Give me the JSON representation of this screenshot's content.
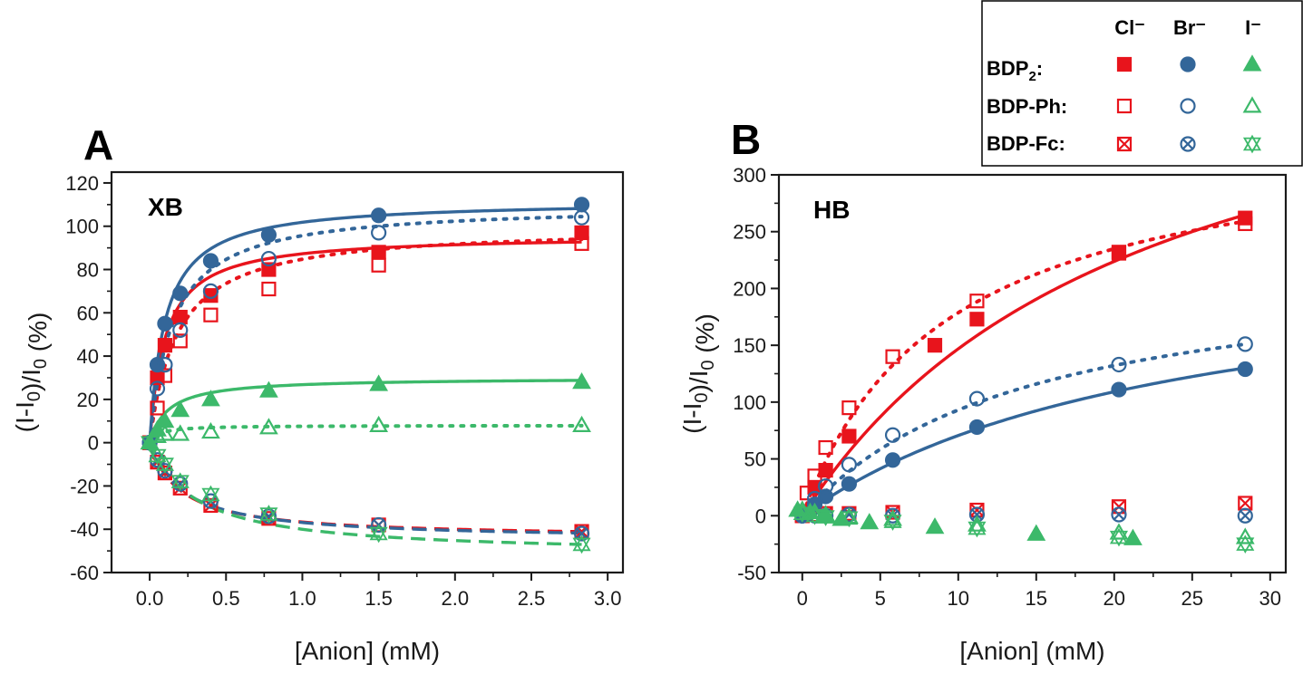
{
  "colors": {
    "cl": "#e8141c",
    "br": "#336699",
    "i": "#3cb96a",
    "axis": "#1a1a1a"
  },
  "legend": {
    "columns": [
      "Cl⁻",
      "Br⁻",
      "I⁻"
    ],
    "rows": [
      {
        "label": "BDP",
        "sub": "2",
        "suffix": ":",
        "style": "filled"
      },
      {
        "label": "BDP-Ph:",
        "sub": "",
        "suffix": "",
        "style": "open"
      },
      {
        "label": "BDP-Fc:",
        "sub": "",
        "suffix": "",
        "style": "crossed"
      }
    ]
  },
  "chart_data": [
    {
      "panel": "A",
      "inner_label": "XB",
      "type": "scatter",
      "xlabel": "[Anion] (mM)",
      "ylabel": "(I-I0)/I0 (%)",
      "xlim": [
        -0.25,
        3.1
      ],
      "ylim": [
        -60,
        125
      ],
      "xticks": [
        0.0,
        0.5,
        1.0,
        1.5,
        2.0,
        2.5,
        3.0
      ],
      "xtick_labels": [
        "0.0",
        "0.5",
        "1.0",
        "1.5",
        "2.0",
        "2.5",
        "3.0"
      ],
      "yticks": [
        -60,
        -40,
        -20,
        0,
        20,
        40,
        60,
        80,
        100,
        120
      ],
      "ytick_labels": [
        "-60",
        "-40",
        "-20",
        "0",
        "20",
        "40",
        "60",
        "80",
        "100",
        "120"
      ],
      "series": [
        {
          "anion": "Cl",
          "compound": "BDP2",
          "marker": "square-filled",
          "fit": "solid",
          "points": [
            [
              0,
              0
            ],
            [
              0.05,
              30
            ],
            [
              0.1,
              45
            ],
            [
              0.2,
              58
            ],
            [
              0.4,
              68
            ],
            [
              0.78,
              80
            ],
            [
              1.5,
              88
            ],
            [
              2.83,
              97
            ]
          ],
          "fit_curve": {
            "a": 96,
            "k": 0.1,
            "hill": 1
          }
        },
        {
          "anion": "Cl",
          "compound": "BDP-Ph",
          "marker": "square-open",
          "fit": "dotted",
          "points": [
            [
              0,
              0
            ],
            [
              0.05,
              16
            ],
            [
              0.1,
              31
            ],
            [
              0.2,
              47
            ],
            [
              0.4,
              59
            ],
            [
              0.78,
              71
            ],
            [
              1.5,
              82
            ],
            [
              2.83,
              92
            ]
          ],
          "fit_curve": {
            "a": 100,
            "k": 0.18,
            "hill": 1
          }
        },
        {
          "anion": "Cl",
          "compound": "BDP-Fc",
          "marker": "square-crossed",
          "fit": "dashed",
          "points": [
            [
              0,
              0
            ],
            [
              0.05,
              -9
            ],
            [
              0.1,
              -14
            ],
            [
              0.2,
              -21
            ],
            [
              0.4,
              -29
            ],
            [
              0.78,
              -35
            ],
            [
              1.5,
              -38
            ],
            [
              2.83,
              -41
            ]
          ],
          "fit_curve": {
            "a": -44,
            "k": 0.2,
            "hill": 1
          }
        },
        {
          "anion": "Br",
          "compound": "BDP2",
          "marker": "circle-filled",
          "fit": "solid",
          "points": [
            [
              0,
              0
            ],
            [
              0.05,
              36
            ],
            [
              0.1,
              55
            ],
            [
              0.2,
              69
            ],
            [
              0.4,
              84
            ],
            [
              0.78,
              96
            ],
            [
              1.5,
              105
            ],
            [
              2.83,
              110
            ]
          ],
          "fit_curve": {
            "a": 112,
            "k": 0.1,
            "hill": 1
          }
        },
        {
          "anion": "Br",
          "compound": "BDP-Ph",
          "marker": "circle-open",
          "fit": "dotted",
          "points": [
            [
              0,
              0
            ],
            [
              0.05,
              25
            ],
            [
              0.1,
              36
            ],
            [
              0.2,
              52
            ],
            [
              0.4,
              70
            ],
            [
              0.78,
              85
            ],
            [
              1.5,
              97
            ],
            [
              2.83,
              104
            ]
          ],
          "fit_curve": {
            "a": 110,
            "k": 0.15,
            "hill": 1
          }
        },
        {
          "anion": "Br",
          "compound": "BDP-Fc",
          "marker": "circle-crossed",
          "fit": "dashed",
          "points": [
            [
              0,
              0
            ],
            [
              0.05,
              -8
            ],
            [
              0.1,
              -13
            ],
            [
              0.2,
              -19
            ],
            [
              0.4,
              -27
            ],
            [
              0.78,
              -34
            ],
            [
              1.5,
              -38
            ],
            [
              2.83,
              -42
            ]
          ],
          "fit_curve": {
            "a": -45,
            "k": 0.22,
            "hill": 1
          }
        },
        {
          "anion": "I",
          "compound": "BDP2",
          "marker": "triangle-filled",
          "fit": "solid",
          "points": [
            [
              0,
              0
            ],
            [
              0.05,
              6
            ],
            [
              0.1,
              10
            ],
            [
              0.2,
              15
            ],
            [
              0.4,
              20
            ],
            [
              0.78,
              24
            ],
            [
              1.5,
              27
            ],
            [
              2.83,
              28
            ]
          ],
          "fit_curve": {
            "a": 30,
            "k": 0.12,
            "hill": 1
          }
        },
        {
          "anion": "I",
          "compound": "BDP-Ph",
          "marker": "triangle-open",
          "fit": "dotted",
          "points": [
            [
              0,
              0
            ],
            [
              0.05,
              3
            ],
            [
              0.1,
              4
            ],
            [
              0.2,
              4
            ],
            [
              0.4,
              5
            ],
            [
              0.78,
              7
            ],
            [
              1.5,
              8
            ],
            [
              2.83,
              8
            ]
          ],
          "fit_curve": {
            "a": 8,
            "k": 0.06,
            "hill": 1
          }
        },
        {
          "anion": "I",
          "compound": "BDP-Fc",
          "marker": "triangle-crossed",
          "fit": "dashed",
          "points": [
            [
              0,
              0
            ],
            [
              0.05,
              -6
            ],
            [
              0.1,
              -10
            ],
            [
              0.2,
              -18
            ],
            [
              0.4,
              -24
            ],
            [
              0.78,
              -33
            ],
            [
              1.5,
              -42
            ],
            [
              2.83,
              -47
            ]
          ],
          "fit_curve": {
            "a": -52,
            "k": 0.3,
            "hill": 1
          }
        }
      ]
    },
    {
      "panel": "B",
      "inner_label": "HB",
      "type": "scatter",
      "xlabel": "[Anion] (mM)",
      "ylabel": "(I-I0)/I0 (%)",
      "xlim": [
        -1.5,
        31
      ],
      "ylim": [
        -50,
        300
      ],
      "xticks": [
        0,
        5,
        10,
        15,
        20,
        25,
        30
      ],
      "xtick_labels": [
        "0",
        "5",
        "10",
        "15",
        "20",
        "25",
        "30"
      ],
      "yticks": [
        -50,
        0,
        50,
        100,
        150,
        200,
        250,
        300
      ],
      "ytick_labels": [
        "-50",
        "0",
        "50",
        "100",
        "150",
        "200",
        "250",
        "300"
      ],
      "series": [
        {
          "anion": "Cl",
          "compound": "BDP2",
          "marker": "square-filled",
          "fit": "solid",
          "points": [
            [
              0,
              0
            ],
            [
              0.8,
              25
            ],
            [
              1.5,
              40
            ],
            [
              3,
              70
            ],
            [
              8.5,
              150
            ],
            [
              11.2,
              173
            ],
            [
              20.3,
              232
            ],
            [
              28.4,
              262
            ]
          ],
          "fit_curve": {
            "a": 470,
            "k": 22,
            "hill": 1
          }
        },
        {
          "anion": "Cl",
          "compound": "BDP-Ph",
          "marker": "square-open",
          "fit": "dotted",
          "points": [
            [
              0,
              0
            ],
            [
              0.3,
              20
            ],
            [
              0.8,
              35
            ],
            [
              1.5,
              60
            ],
            [
              3,
              95
            ],
            [
              5.8,
              140
            ],
            [
              11.2,
              189
            ],
            [
              20.3,
              231
            ],
            [
              28.4,
              257
            ]
          ],
          "fit_curve": {
            "a": 343,
            "k": 9.2,
            "hill": 1
          }
        },
        {
          "anion": "Cl",
          "compound": "BDP-Fc",
          "marker": "square-crossed",
          "fit": "none",
          "points": [
            [
              0,
              0
            ],
            [
              0.8,
              1
            ],
            [
              1.5,
              2
            ],
            [
              3,
              2
            ],
            [
              5.8,
              3
            ],
            [
              11.2,
              5
            ],
            [
              20.3,
              8
            ],
            [
              28.4,
              11
            ]
          ]
        },
        {
          "anion": "Br",
          "compound": "BDP2",
          "marker": "circle-filled",
          "fit": "solid",
          "points": [
            [
              0,
              0
            ],
            [
              0.8,
              10
            ],
            [
              1.5,
              17
            ],
            [
              3,
              28
            ],
            [
              5.8,
              49
            ],
            [
              11.2,
              78
            ],
            [
              20.3,
              111
            ],
            [
              28.4,
              129
            ]
          ],
          "fit_curve": {
            "a": 240,
            "k": 24,
            "hill": 1
          }
        },
        {
          "anion": "Br",
          "compound": "BDP-Ph",
          "marker": "circle-open",
          "fit": "dotted",
          "points": [
            [
              0,
              0
            ],
            [
              0.8,
              15
            ],
            [
              1.5,
              26
            ],
            [
              3,
              45
            ],
            [
              5.8,
              71
            ],
            [
              11.2,
              103
            ],
            [
              20.3,
              133
            ],
            [
              28.4,
              151
            ]
          ],
          "fit_curve": {
            "a": 228,
            "k": 14.5,
            "hill": 1
          }
        },
        {
          "anion": "Br",
          "compound": "BDP-Fc",
          "marker": "circle-crossed",
          "fit": "none",
          "points": [
            [
              0,
              0
            ],
            [
              0.8,
              0
            ],
            [
              1.5,
              0
            ],
            [
              3,
              1
            ],
            [
              5.8,
              0
            ],
            [
              11.2,
              1
            ],
            [
              20.3,
              1
            ],
            [
              28.4,
              0
            ]
          ]
        },
        {
          "anion": "I",
          "compound": "BDP2",
          "marker": "triangle-filled",
          "fit": "none",
          "points": [
            [
              -0.3,
              5
            ],
            [
              0.5,
              3
            ],
            [
              1.5,
              0
            ],
            [
              2.5,
              -3
            ],
            [
              4.3,
              -6
            ],
            [
              8.5,
              -10
            ],
            [
              15,
              -16
            ],
            [
              21.2,
              -20
            ]
          ]
        },
        {
          "anion": "I",
          "compound": "BDP-Ph",
          "marker": "triangle-open",
          "fit": "none",
          "points": [
            [
              0,
              5
            ],
            [
              0.8,
              3
            ],
            [
              1.5,
              1
            ],
            [
              3,
              -1
            ],
            [
              5.8,
              -3
            ],
            [
              11.2,
              -8
            ],
            [
              20.3,
              -15
            ],
            [
              28.4,
              -19
            ]
          ]
        },
        {
          "anion": "I",
          "compound": "BDP-Fc",
          "marker": "triangle-crossed",
          "fit": "none",
          "points": [
            [
              0,
              2
            ],
            [
              0.8,
              0
            ],
            [
              1.5,
              -1
            ],
            [
              3,
              -2
            ],
            [
              5.8,
              -5
            ],
            [
              11.2,
              -11
            ],
            [
              20.3,
              -19
            ],
            [
              28.4,
              -25
            ]
          ]
        }
      ]
    }
  ]
}
